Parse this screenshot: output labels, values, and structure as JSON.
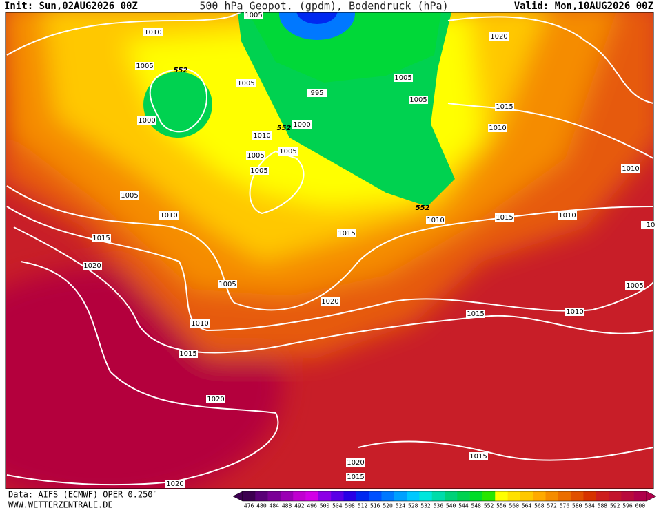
{
  "header": {
    "init": "Init: Sun,02AUG2026 00Z",
    "title": "500 hPa Geopot. (gpdm), Bodendruck (hPa)",
    "valid": "Valid: Mon,10AUG2026 00Z"
  },
  "footer": {
    "source": "Data: AIFS (ECMWF) OPER 0.250°",
    "url": "WWW.WETTERZENTRALE.DE"
  },
  "colorbar": {
    "labels": [
      476,
      480,
      484,
      488,
      492,
      496,
      500,
      504,
      508,
      512,
      516,
      520,
      524,
      528,
      532,
      536,
      540,
      544,
      548,
      552,
      556,
      560,
      564,
      568,
      572,
      576,
      580,
      584,
      588,
      592,
      596,
      600
    ],
    "colors": [
      "#3c0050",
      "#5a0078",
      "#7a0096",
      "#9a00b4",
      "#c000d0",
      "#d200e6",
      "#8c00e6",
      "#5a00e6",
      "#2800e6",
      "#0028f0",
      "#0050ff",
      "#0078ff",
      "#00a0ff",
      "#00c8ff",
      "#00e6dc",
      "#00dcaa",
      "#00d278",
      "#00d250",
      "#00dc28",
      "#28e600",
      "#ffff00",
      "#ffe100",
      "#ffc800",
      "#ffaa00",
      "#f58c00",
      "#eb6e00",
      "#e15000",
      "#d73200",
      "#cd1e1e",
      "#c3142d",
      "#b90a3c",
      "#af004b"
    ]
  },
  "isobar_labels": [
    "1005",
    "1010",
    "1005",
    "552",
    "1005",
    "995",
    "1005",
    "1020",
    "1005",
    "1015",
    "1000",
    "552",
    "1000",
    "1010",
    "1010",
    "1005",
    "1005",
    "1005",
    "1010",
    "1005",
    "552",
    "1010",
    "1010",
    "1015",
    "1010",
    "1015",
    "1015",
    "1020",
    "1005",
    "1005",
    "1020",
    "1015",
    "1010",
    "1010",
    "1015",
    "1020",
    "1020",
    "1015",
    "1015",
    "1020",
    "10"
  ]
}
